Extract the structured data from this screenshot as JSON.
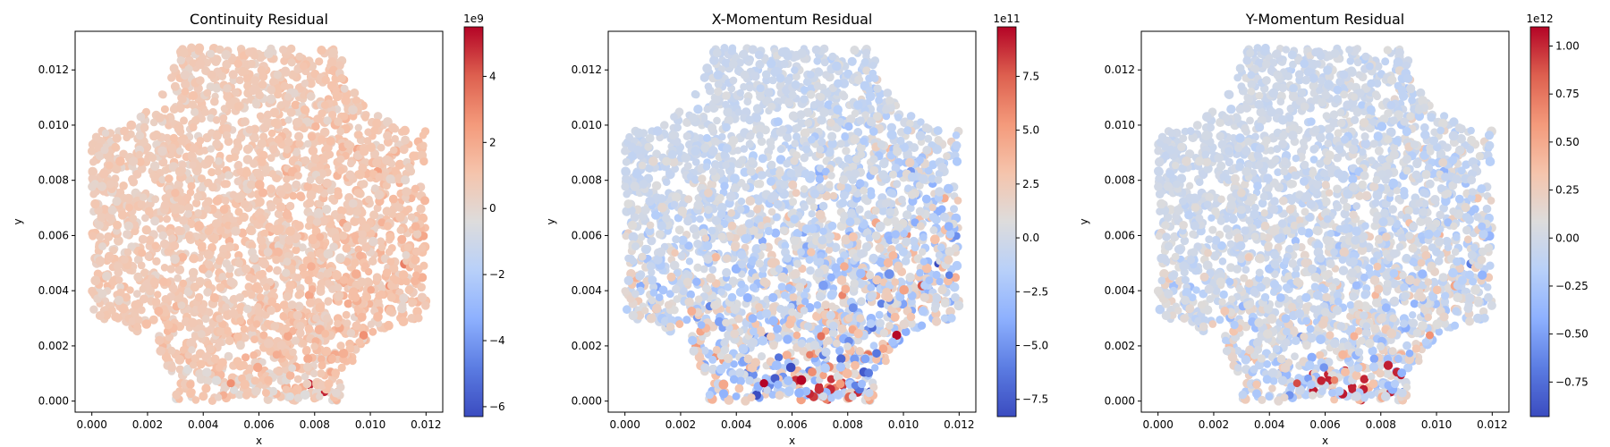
{
  "chart_data": [
    {
      "type": "scatter",
      "title": "Continuity Residual",
      "xlabel": "x",
      "ylabel": "y",
      "xlim": [
        -0.0006,
        0.0126
      ],
      "ylim": [
        -0.0004,
        0.0134
      ],
      "xticks": [
        "0.000",
        "0.002",
        "0.004",
        "0.006",
        "0.008",
        "0.010",
        "0.012"
      ],
      "yticks": [
        "0.000",
        "0.002",
        "0.004",
        "0.006",
        "0.008",
        "0.010",
        "0.012"
      ],
      "colormap": "coolwarm",
      "colorbar": {
        "range": [
          -6.3,
          5.5
        ],
        "ticks": [
          -6,
          -4,
          -2,
          0,
          2,
          4
        ],
        "tick_labels": [
          "−6",
          "−4",
          "−2",
          "0",
          "2",
          "4"
        ],
        "exponent_label": "1e9"
      },
      "domain": "square [0, 0.012] x [0, 0.0128] with quarter-circle cut-outs of radius ~0.003 at each corner",
      "value_trend": "mostly slightly positive (light red); more saturated positive values toward lower-right; strongest negative near bottom edge",
      "pattern_id": 0
    },
    {
      "type": "scatter",
      "title": "X-Momentum Residual",
      "xlabel": "x",
      "ylabel": "y",
      "xlim": [
        -0.0006,
        0.0126
      ],
      "ylim": [
        -0.0004,
        0.0134
      ],
      "xticks": [
        "0.000",
        "0.002",
        "0.004",
        "0.006",
        "0.008",
        "0.010",
        "0.012"
      ],
      "yticks": [
        "0.000",
        "0.002",
        "0.004",
        "0.006",
        "0.008",
        "0.010",
        "0.012"
      ],
      "colormap": "coolwarm",
      "colorbar": {
        "range": [
          -8.3,
          9.8
        ],
        "ticks": [
          -7.5,
          -5.0,
          -2.5,
          0.0,
          2.5,
          5.0,
          7.5
        ],
        "tick_labels": [
          "−7.5",
          "−5.0",
          "−2.5",
          "0.0",
          "2.5",
          "5.0",
          "7.5"
        ],
        "exponent_label": "1e11"
      },
      "domain": "square [0, 0.012] x [0, 0.0128] with quarter-circle cut-outs of radius ~0.003 at each corner",
      "value_trend": "near zero (light blue-grey) in upper-left; stronger mixed red/blue in lower half and right side",
      "pattern_id": 1
    },
    {
      "type": "scatter",
      "title": "Y-Momentum Residual",
      "xlabel": "x",
      "ylabel": "y",
      "xlim": [
        -0.0006,
        0.0126
      ],
      "ylim": [
        -0.0004,
        0.0134
      ],
      "xticks": [
        "0.000",
        "0.002",
        "0.004",
        "0.006",
        "0.008",
        "0.010",
        "0.012"
      ],
      "yticks": [
        "0.000",
        "0.002",
        "0.004",
        "0.006",
        "0.008",
        "0.010",
        "0.012"
      ],
      "colormap": "coolwarm",
      "colorbar": {
        "range": [
          -0.93,
          1.1
        ],
        "ticks": [
          -0.75,
          -0.5,
          -0.25,
          0.0,
          0.25,
          0.5,
          0.75,
          1.0
        ],
        "tick_labels": [
          "−0.75",
          "−0.50",
          "−0.25",
          "0.00",
          "0.25",
          "0.50",
          "0.75",
          "1.00"
        ],
        "exponent_label": "1e12"
      },
      "domain": "square [0, 0.012] x [0, 0.0128] with quarter-circle cut-outs of radius ~0.003 at each corner",
      "value_trend": "near zero in upper-left; strong positive (dark red) and negative (blue) points concentrated near the bottom edge",
      "pattern_id": 2
    }
  ]
}
